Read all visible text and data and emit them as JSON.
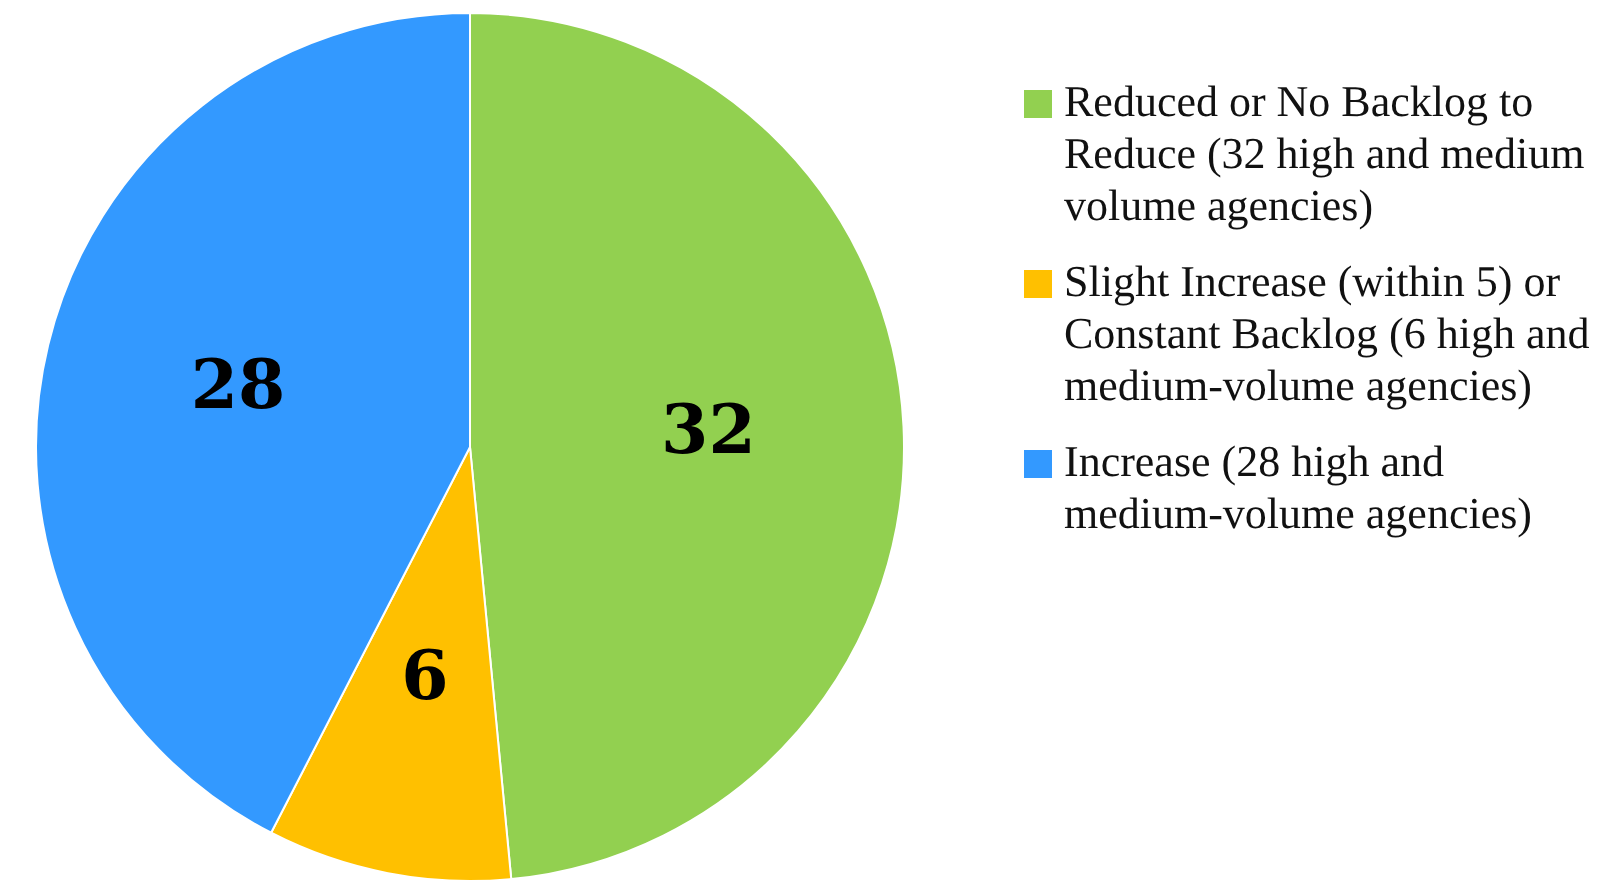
{
  "chart_data": {
    "type": "pie",
    "categories": [
      "Reduced or No Backlog to Reduce (32 high and medium volume agencies)",
      "Slight Increase (within 5) or Constant Backlog (6 high and medium-volume agencies)",
      "Increase (28 high and medium-volume agencies)"
    ],
    "values": [
      32,
      6,
      28
    ],
    "colors": [
      "#92d050",
      "#ffc000",
      "#3399ff"
    ],
    "data_labels": true,
    "legend": "right"
  }
}
